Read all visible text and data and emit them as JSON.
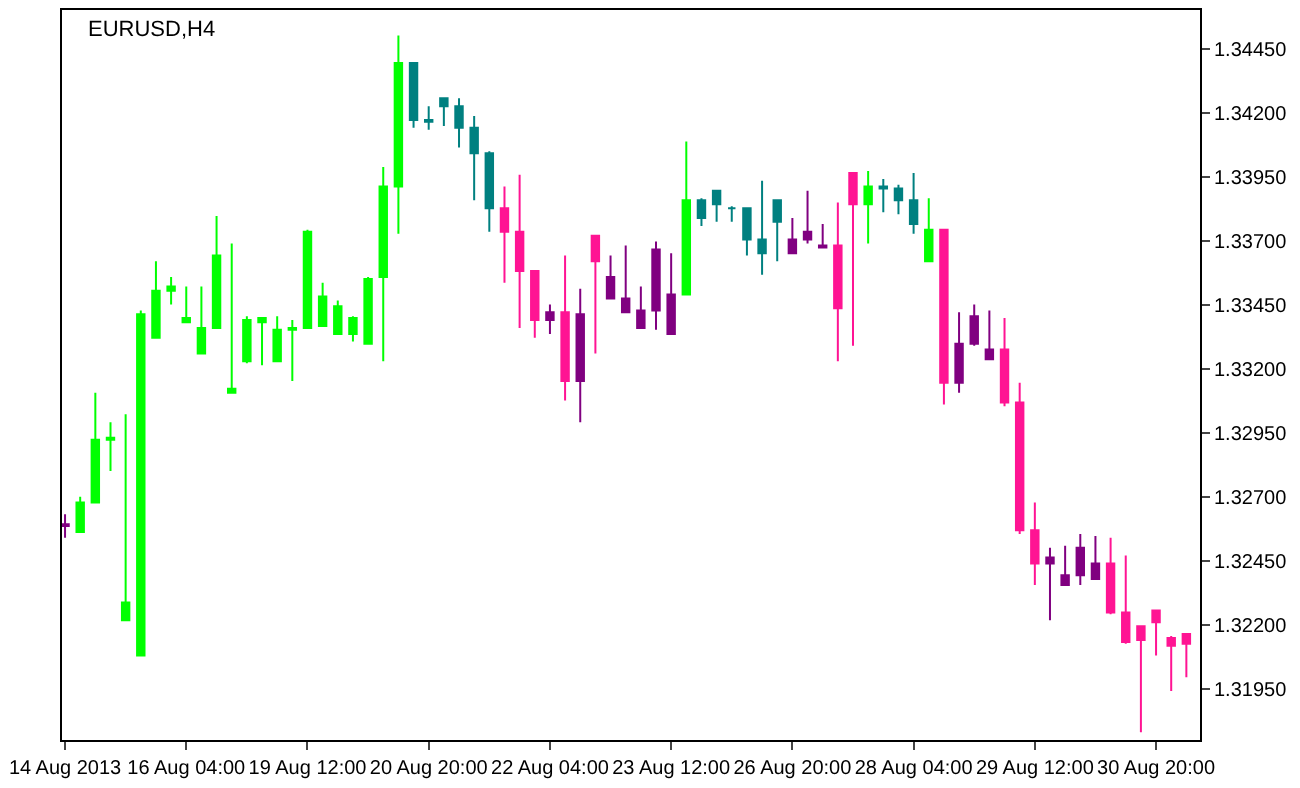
{
  "chart_data": {
    "type": "candlestick",
    "title": "EURUSD,H4",
    "categories": [
      "14 Aug 2013",
      null,
      null,
      null,
      null,
      null,
      null,
      null,
      "16 Aug 04:00",
      null,
      null,
      null,
      null,
      null,
      null,
      null,
      "19 Aug 12:00",
      null,
      null,
      null,
      null,
      null,
      null,
      null,
      "20 Aug 20:00",
      null,
      null,
      null,
      null,
      null,
      null,
      null,
      "22 Aug 04:00",
      null,
      null,
      null,
      null,
      null,
      null,
      null,
      "23 Aug 12:00",
      null,
      null,
      null,
      null,
      null,
      null,
      null,
      "26 Aug 20:00",
      null,
      null,
      null,
      null,
      null,
      null,
      null,
      "28 Aug 04:00",
      null,
      null,
      null,
      null,
      null,
      null,
      null,
      "29 Aug 12:00",
      null,
      null,
      null,
      null,
      null,
      null,
      null,
      "30 Aug 20:00",
      null,
      null
    ],
    "ohlc": [
      [
        1.32586,
        1.32632,
        1.3254,
        1.32593
      ],
      [
        1.32563,
        1.32701,
        1.32563,
        1.32678
      ],
      [
        1.32678,
        1.33107,
        1.32678,
        1.32923
      ],
      [
        1.32923,
        1.32992,
        1.32801,
        1.32931
      ],
      [
        1.32218,
        1.33023,
        1.32218,
        1.32287
      ],
      [
        1.3208,
        1.33429,
        1.3208,
        1.33414
      ],
      [
        1.33322,
        1.33621,
        1.33322,
        1.33506
      ],
      [
        1.33506,
        1.3356,
        1.33452,
        1.33522
      ],
      [
        1.33383,
        1.33522,
        1.33383,
        1.33399
      ],
      [
        1.33261,
        1.33522,
        1.33261,
        1.3336
      ],
      [
        1.3336,
        1.33798,
        1.3336,
        1.33644
      ],
      [
        1.33107,
        1.3369,
        1.33107,
        1.33123
      ],
      [
        1.3323,
        1.33406,
        1.33222,
        1.33391
      ],
      [
        1.33383,
        1.33399,
        1.33215,
        1.33399
      ],
      [
        1.3323,
        1.33406,
        1.3323,
        1.33353
      ],
      [
        1.33353,
        1.33391,
        1.33153,
        1.3336
      ],
      [
        1.3336,
        1.33744,
        1.3336,
        1.33736
      ],
      [
        1.33368,
        1.33537,
        1.33368,
        1.33483
      ],
      [
        1.33337,
        1.33468,
        1.33337,
        1.33445
      ],
      [
        1.33337,
        1.33406,
        1.33307,
        1.33399
      ],
      [
        1.33299,
        1.3356,
        1.33299,
        1.33552
      ],
      [
        1.3356,
        1.33989,
        1.3323,
        1.33913
      ],
      [
        1.33913,
        1.34503,
        1.33729,
        1.34396
      ],
      [
        1.34396,
        1.34396,
        1.34143,
        1.34173
      ],
      [
        1.34173,
        1.34227,
        1.34135,
        1.34166
      ],
      [
        1.34258,
        1.34258,
        1.3415,
        1.34227
      ],
      [
        1.34227,
        1.34258,
        1.34066,
        1.34143
      ],
      [
        1.34143,
        1.34189,
        1.33859,
        1.34043
      ],
      [
        1.34043,
        1.34051,
        1.33736,
        1.33828
      ],
      [
        1.33828,
        1.33913,
        1.33537,
        1.33736
      ],
      [
        1.33736,
        1.33959,
        1.3336,
        1.33583
      ],
      [
        1.33583,
        1.33583,
        1.33322,
        1.33391
      ],
      [
        1.33391,
        1.33452,
        1.33337,
        1.33422
      ],
      [
        1.33422,
        1.33644,
        1.33077,
        1.33153
      ],
      [
        1.33153,
        1.33514,
        1.32992,
        1.33414
      ],
      [
        1.33721,
        1.33721,
        1.33261,
        1.33621
      ],
      [
        1.33475,
        1.33644,
        1.33475,
        1.3356
      ],
      [
        1.33422,
        1.33683,
        1.33422,
        1.33475
      ],
      [
        1.3336,
        1.33522,
        1.3336,
        1.33429
      ],
      [
        1.33429,
        1.33698,
        1.33353,
        1.33667
      ],
      [
        1.33337,
        1.33652,
        1.33337,
        1.33491
      ],
      [
        1.33491,
        1.34089,
        1.33491,
        1.33859
      ],
      [
        1.33859,
        1.33867,
        1.33759,
        1.3379
      ],
      [
        1.33897,
        1.33897,
        1.33775,
        1.33844
      ],
      [
        1.33828,
        1.33836,
        1.33775,
        1.33828
      ],
      [
        1.33828,
        1.33828,
        1.33644,
        1.33706
      ],
      [
        1.33706,
        1.33936,
        1.33568,
        1.33652
      ],
      [
        1.33859,
        1.33859,
        1.33621,
        1.33775
      ],
      [
        1.33652,
        1.3379,
        1.33652,
        1.33706
      ],
      [
        1.33706,
        1.33897,
        1.3369,
        1.33736
      ],
      [
        1.33675,
        1.33767,
        1.33675,
        1.33683
      ],
      [
        1.33683,
        1.33851,
        1.3323,
        1.33437
      ],
      [
        1.33966,
        1.33966,
        1.33291,
        1.33844
      ],
      [
        1.33844,
        1.33974,
        1.3369,
        1.33913
      ],
      [
        1.33913,
        1.33943,
        1.33813,
        1.33905
      ],
      [
        1.33905,
        1.3392,
        1.33805,
        1.33859
      ],
      [
        1.33859,
        1.33966,
        1.33729,
        1.33767
      ],
      [
        1.33621,
        1.33867,
        1.33621,
        1.33744
      ],
      [
        1.33744,
        1.33744,
        1.33061,
        1.33146
      ],
      [
        1.33146,
        1.33422,
        1.33107,
        1.33299
      ],
      [
        1.33299,
        1.33452,
        1.33291,
        1.33406
      ],
      [
        1.33238,
        1.33429,
        1.33238,
        1.33276
      ],
      [
        1.33276,
        1.33399,
        1.33054,
        1.33069
      ],
      [
        1.33069,
        1.33146,
        1.32555,
        1.3257
      ],
      [
        1.3257,
        1.32678,
        1.32356,
        1.3244
      ],
      [
        1.3244,
        1.32501,
        1.32218,
        1.32463
      ],
      [
        1.32356,
        1.32509,
        1.32356,
        1.32394
      ],
      [
        1.32394,
        1.32555,
        1.32356,
        1.32501
      ],
      [
        1.32379,
        1.32547,
        1.32379,
        1.3244
      ],
      [
        1.3244,
        1.3254,
        1.32241,
        1.32248
      ],
      [
        1.32248,
        1.32471,
        1.32126,
        1.32133
      ],
      [
        1.32195,
        1.32195,
        1.3178,
        1.32141
      ],
      [
        1.32256,
        1.32256,
        1.3208,
        1.3221
      ],
      [
        1.32149,
        1.32156,
        1.31941,
        1.32118
      ],
      [
        1.32164,
        1.32164,
        1.31995,
        1.32126
      ]
    ],
    "colors": [
      "#800080",
      "#00ff00",
      "#00ff00",
      "#00ff00",
      "#00ff00",
      "#00ff00",
      "#00ff00",
      "#00ff00",
      "#00ff00",
      "#00ff00",
      "#00ff00",
      "#00ff00",
      "#00ff00",
      "#00ff00",
      "#00ff00",
      "#00ff00",
      "#00ff00",
      "#00ff00",
      "#00ff00",
      "#00ff00",
      "#00ff00",
      "#00ff00",
      "#00ff00",
      "#008080",
      "#008080",
      "#008080",
      "#008080",
      "#008080",
      "#008080",
      "#ff1493",
      "#ff1493",
      "#ff1493",
      "#800080",
      "#ff1493",
      "#800080",
      "#ff1493",
      "#800080",
      "#800080",
      "#800080",
      "#800080",
      "#800080",
      "#00ff00",
      "#008080",
      "#008080",
      "#008080",
      "#008080",
      "#008080",
      "#008080",
      "#800080",
      "#800080",
      "#800080",
      "#ff1493",
      "#ff1493",
      "#00ff00",
      "#008080",
      "#008080",
      "#008080",
      "#00ff00",
      "#ff1493",
      "#800080",
      "#800080",
      "#800080",
      "#ff1493",
      "#ff1493",
      "#ff1493",
      "#800080",
      "#800080",
      "#800080",
      "#800080",
      "#ff1493",
      "#ff1493",
      "#ff1493",
      "#ff1493",
      "#ff1493",
      "#ff1493"
    ],
    "ylim": [
      1.3175,
      1.34603
    ],
    "yticks": [
      {
        "value": 1.3445,
        "label": "1.34450"
      },
      {
        "value": 1.342,
        "label": "1.34200"
      },
      {
        "value": 1.3395,
        "label": "1.33950"
      },
      {
        "value": 1.337,
        "label": "1.33700"
      },
      {
        "value": 1.3345,
        "label": "1.33450"
      },
      {
        "value": 1.332,
        "label": "1.33200"
      },
      {
        "value": 1.3295,
        "label": "1.32950"
      },
      {
        "value": 1.327,
        "label": "1.32700"
      },
      {
        "value": 1.3245,
        "label": "1.32450"
      },
      {
        "value": 1.322,
        "label": "1.32200"
      },
      {
        "value": 1.3195,
        "label": "1.31950"
      }
    ]
  }
}
